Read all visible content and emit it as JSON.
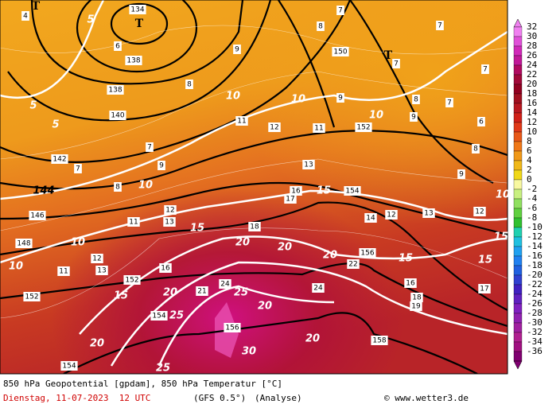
{
  "map": {
    "labels": [
      "134",
      "138",
      "138",
      "140",
      "142",
      "144",
      "146",
      "148",
      "150",
      "152",
      "154",
      "156",
      "152",
      "152",
      "154",
      "156",
      "158",
      "154",
      "5",
      "5",
      "5",
      "10",
      "10",
      "10",
      "10",
      "10",
      "10",
      "15",
      "15",
      "15",
      "15",
      "15",
      "20",
      "20",
      "20",
      "20",
      "20",
      "20",
      "20",
      "25",
      "25",
      "25",
      "30",
      "10",
      "15",
      "8",
      "7",
      "9",
      "8",
      "11",
      "12",
      "11",
      "13",
      "16",
      "17",
      "18",
      "14",
      "12",
      "13",
      "12",
      "16",
      "17",
      "18",
      "19",
      "22",
      "24",
      "21",
      "24",
      "11",
      "12",
      "13",
      "12",
      "13",
      "11",
      "16",
      "9",
      "7",
      "7",
      "8",
      "9",
      "8",
      "9",
      "7",
      "6",
      "8",
      "9",
      "7",
      "7",
      "6",
      "7",
      "4",
      "T",
      "T",
      "T"
    ]
  },
  "colorbar": {
    "ticks": [
      32,
      30,
      28,
      26,
      24,
      22,
      20,
      18,
      16,
      14,
      12,
      10,
      8,
      6,
      4,
      2,
      0,
      -2,
      -4,
      -6,
      -8,
      -10,
      -12,
      -14,
      -16,
      -18,
      -20,
      -22,
      -24,
      -26,
      -28,
      -30,
      -32,
      -34,
      -36
    ]
  },
  "footer": {
    "title": "850 hPa Geopotential [gpdam], 850 hPa Temperatur [°C]",
    "date": "Dienstag, 11-07-2023  12 UTC",
    "model": "(GFS 0.5°)",
    "run": "(Analyse)",
    "credit": "© www.wetter3.de"
  }
}
